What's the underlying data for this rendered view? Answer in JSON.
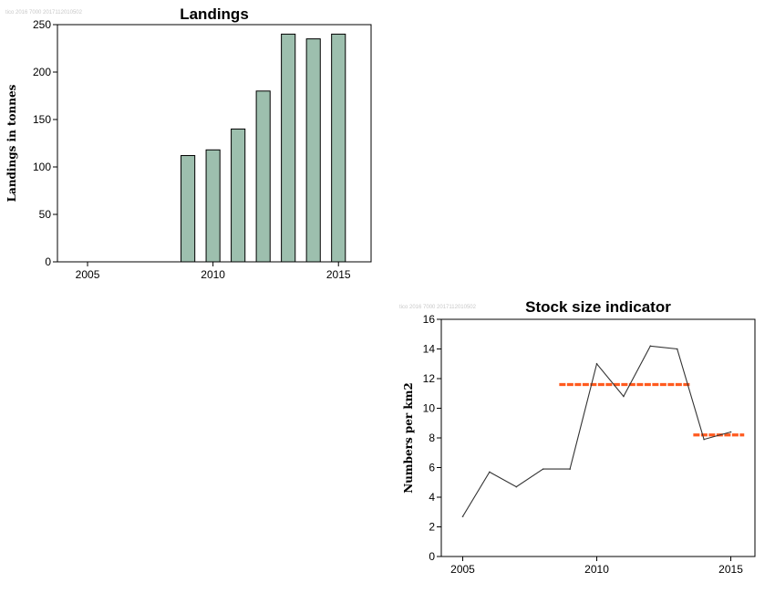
{
  "chart_data": [
    {
      "type": "bar",
      "title": "Landings",
      "ylabel": "Landings in tonnes",
      "xlabel": "",
      "corner_text": "tico 2016 7000 2017112010502",
      "bar_color": "#9dbfae",
      "x": [
        2009,
        2010,
        2011,
        2012,
        2013,
        2014,
        2015
      ],
      "values": [
        112,
        118,
        140,
        180,
        240,
        235,
        240
      ],
      "xlim": [
        2003.8,
        2016.3
      ],
      "ylim": [
        0,
        250
      ],
      "xticks": [
        2005,
        2010,
        2015
      ],
      "yticks": [
        0,
        50,
        100,
        150,
        200,
        250
      ],
      "grid": false
    },
    {
      "type": "line",
      "title": "Stock size indicator",
      "ylabel": "Numbers per km2",
      "xlabel": "",
      "corner_text": "tico 2016 7000 2017112010502",
      "line_color": "#333333",
      "ref_color": "#ff5a1f",
      "series": [
        {
          "x": [
            2005,
            2006,
            2007,
            2008,
            2009,
            2010,
            2011,
            2012,
            2013,
            2014,
            2015
          ],
          "values": [
            2.7,
            5.7,
            4.7,
            5.9,
            5.9,
            13.0,
            10.8,
            14.2,
            14.0,
            7.9,
            8.4
          ]
        }
      ],
      "reference_lines": [
        {
          "x": [
            2008.6,
            2013.5
          ],
          "y": 11.6
        },
        {
          "x": [
            2013.6,
            2015.5
          ],
          "y": 8.2
        }
      ],
      "xlim": [
        2004.2,
        2015.9
      ],
      "ylim": [
        0,
        16
      ],
      "xticks": [
        2005,
        2010,
        2015
      ],
      "yticks": [
        0,
        2,
        4,
        6,
        8,
        10,
        12,
        14,
        16
      ],
      "grid": false
    }
  ]
}
